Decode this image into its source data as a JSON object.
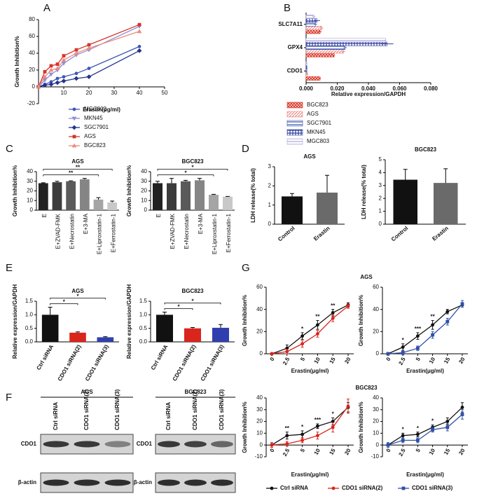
{
  "panel_labels": [
    "A",
    "B",
    "C",
    "D",
    "E",
    "F",
    "G"
  ],
  "chart_data": [
    {
      "type": "line",
      "xlabel": "Erastin(μg/ml)",
      "ylabel": "Growth Inhibition%",
      "x": [
        0,
        2.5,
        5,
        7.5,
        10,
        15,
        20,
        40
      ],
      "xlim": [
        0,
        50
      ],
      "xticks": [
        10,
        20,
        30,
        40,
        50
      ],
      "ylim": [
        -20,
        80
      ],
      "yticks": [
        -20,
        0,
        20,
        40,
        60,
        80
      ],
      "series": [
        {
          "name": "MGC803",
          "color": "#3f56b5",
          "marker": "circle",
          "values": [
            0,
            3,
            6,
            10,
            12,
            16,
            22,
            48
          ]
        },
        {
          "name": "MKN45",
          "color": "#8f8fd6",
          "marker": "triangle-down",
          "values": [
            0,
            8,
            15,
            20,
            28,
            38,
            44,
            72
          ]
        },
        {
          "name": "SGC7901",
          "color": "#24338f",
          "marker": "diamond",
          "values": [
            0,
            2,
            3,
            5,
            7,
            10,
            12,
            43
          ]
        },
        {
          "name": "AGS",
          "color": "#d6342a",
          "marker": "square",
          "values": [
            0,
            18,
            25,
            27,
            37,
            44,
            50,
            74
          ]
        },
        {
          "name": "BGC823",
          "color": "#ec8a7e",
          "marker": "triangle",
          "values": [
            0,
            12,
            20,
            22,
            32,
            40,
            46,
            66
          ]
        }
      ]
    },
    {
      "type": "hbar",
      "xlabel": "Relative expression/GAPDH",
      "categories": [
        "SLC7A11",
        "GPX4",
        "CDO1"
      ],
      "xlim": [
        0,
        0.08
      ],
      "xticks": [
        {
          "value": 0,
          "label": "0.000"
        },
        {
          "value": 0.02,
          "label": "0.020"
        },
        {
          "value": 0.04,
          "label": "0.040"
        },
        {
          "value": 0.06,
          "label": "0.060"
        },
        {
          "value": 0.08,
          "label": "0.080"
        }
      ],
      "series": [
        {
          "name": "BGC823",
          "color": "#d9382b",
          "hatch": "crosshatch",
          "values": [
            0.009,
            0.018,
            0.009
          ],
          "errors": [
            0.001,
            0.0005,
            0.0005
          ]
        },
        {
          "name": "AGS",
          "color": "#e9867f",
          "hatch": "diagonal",
          "values": [
            0.01,
            0.024,
            0.001
          ],
          "errors": [
            0.001,
            0.001,
            0.0002
          ]
        },
        {
          "name": "SGC7901",
          "color": "#3a53b0",
          "hatch": "horizontal",
          "values": [
            0.006,
            0.025,
            0.0005
          ],
          "errors": [
            0.001,
            0.001,
            0.0002
          ]
        },
        {
          "name": "MKN45",
          "color": "#2e3f9c",
          "hatch": "grid",
          "values": [
            0.007,
            0.052,
            0.0005
          ],
          "errors": [
            0.002,
            0.004,
            0.0002
          ]
        },
        {
          "name": "MGC803",
          "color": "#aaa4dc",
          "hatch": "horizontal",
          "values": [
            0.005,
            0.051,
            0.0005
          ],
          "errors": [
            0.001,
            0.0005,
            0.0002
          ]
        }
      ]
    },
    {
      "type": "bar",
      "title": "AGS",
      "ylabel": "Growth Inhibition%",
      "categories": [
        "E",
        "E+ZVAD-FMK",
        "E+Necrostatin",
        "E+3-MA",
        "E+Liproxstatin-1",
        "E+Ferrostatin-1"
      ],
      "values": [
        28,
        29,
        30,
        32,
        11,
        8
      ],
      "errors": [
        0.5,
        1,
        0.5,
        1,
        2,
        1.5
      ],
      "colors": [
        "#222222",
        "#3c3c3c",
        "#5a5a5a",
        "#858585",
        "#a5a5a5",
        "#c8c8c8"
      ],
      "ylim": [
        0,
        40
      ],
      "yticks": [
        0,
        10,
        20,
        30,
        40
      ],
      "brackets": [
        {
          "from": 0,
          "to": 4,
          "label": "**"
        },
        {
          "from": 0,
          "to": 5,
          "label": "**"
        }
      ]
    },
    {
      "type": "bar",
      "title": "BGC823",
      "ylabel": "Growth Inhibition%",
      "categories": [
        "E",
        "E+ZVAD-FMK",
        "E+Necrostatin",
        "E+3-MA",
        "E+Liproxstatin-1",
        "E+Ferrostatin-1"
      ],
      "values": [
        28,
        28,
        30,
        31,
        16,
        14
      ],
      "errors": [
        2,
        5,
        1,
        2,
        0.5,
        0.3
      ],
      "colors": [
        "#222222",
        "#3c3c3c",
        "#5a5a5a",
        "#858585",
        "#a5a5a5",
        "#c8c8c8"
      ],
      "ylim": [
        0,
        40
      ],
      "yticks": [
        0,
        10,
        20,
        30,
        40
      ],
      "brackets": [
        {
          "from": 0,
          "to": 4,
          "label": "*"
        },
        {
          "from": 0,
          "to": 5,
          "label": "*"
        }
      ]
    },
    {
      "type": "bar",
      "title": "AGS",
      "ylabel": "LDH release(% total)",
      "categories": [
        "Control",
        "Erastin"
      ],
      "values": [
        1.45,
        1.65
      ],
      "errors": [
        0.15,
        0.9
      ],
      "colors": [
        "#111111",
        "#6a6a6a"
      ],
      "ylim": [
        0,
        3
      ],
      "yticks": [
        0,
        1,
        2,
        3
      ]
    },
    {
      "type": "bar",
      "title": "BGC823",
      "ylabel": "LDH release(% total)",
      "categories": [
        "Control",
        "Erastin"
      ],
      "values": [
        3.45,
        3.2
      ],
      "errors": [
        0.8,
        1.1
      ],
      "colors": [
        "#111111",
        "#6a6a6a"
      ],
      "ylim": [
        0,
        5
      ],
      "yticks": [
        0,
        1,
        2,
        3,
        4,
        5
      ]
    },
    {
      "type": "bar",
      "title": "AGS",
      "ylabel": "Relative expression/GAPDH",
      "categories": [
        "Ctrl siRNA",
        "CDO1 siRNA(2)",
        "CDO1 siRNA(3)"
      ],
      "values": [
        1.0,
        0.34,
        0.17
      ],
      "errors": [
        0.28,
        0.03,
        0.02
      ],
      "colors": [
        "#111111",
        "#d9251c",
        "#2f3fae"
      ],
      "ylim": [
        0,
        1.5
      ],
      "yticks": [
        {
          "value": 0,
          "label": "0.0"
        },
        {
          "value": 0.5,
          "label": "0.5"
        },
        {
          "value": 1,
          "label": "1.0"
        },
        {
          "value": 1.5,
          "label": "1.5"
        }
      ],
      "brackets": [
        {
          "from": 0,
          "to": 1,
          "label": "*"
        },
        {
          "from": 0,
          "to": 2,
          "label": "*"
        }
      ]
    },
    {
      "type": "bar",
      "title": "BGC823",
      "ylabel": "Relative expression/GAPDH",
      "categories": [
        "Ctrl siRNA",
        "CDO1 siRNA(2)",
        "CDO1 siRNA(3)"
      ],
      "values": [
        1.0,
        0.5,
        0.52
      ],
      "errors": [
        0.1,
        0.03,
        0.12
      ],
      "colors": [
        "#111111",
        "#d9251c",
        "#2f3fae"
      ],
      "ylim": [
        0,
        1.5
      ],
      "yticks": [
        {
          "value": 0,
          "label": "0.0"
        },
        {
          "value": 0.5,
          "label": "0.5"
        },
        {
          "value": 1,
          "label": "1.0"
        },
        {
          "value": 1.5,
          "label": "1.5"
        }
      ],
      "brackets": [
        {
          "from": 0,
          "to": 1,
          "label": "*"
        },
        {
          "from": 0,
          "to": 2,
          "label": "*"
        }
      ]
    },
    {
      "type": "line",
      "title": "AGS",
      "xlabel": "Erastin(μg/ml)",
      "ylabel": "Growth Inhibition%",
      "categories": [
        "0",
        "2.5",
        "5",
        "10",
        "15",
        "20"
      ],
      "ylim": [
        0,
        60
      ],
      "yticks": [
        0,
        20,
        40,
        60
      ],
      "series": [
        {
          "name": "Ctrl siRNA",
          "color": "#111111",
          "marker": "circle",
          "values": [
            0,
            5,
            16,
            26,
            37,
            44
          ],
          "errors": [
            1,
            3,
            3,
            4,
            3,
            2
          ]
        },
        {
          "name": "CDO1 siRNA(2)",
          "color": "#d9251c",
          "marker": "circle",
          "values": [
            0,
            2,
            9,
            18,
            32,
            43
          ],
          "errors": [
            1,
            2,
            3,
            3,
            3,
            2
          ]
        }
      ],
      "stars": [
        {
          "at": 2,
          "label": "*"
        },
        {
          "at": 3,
          "label": "**"
        },
        {
          "at": 4,
          "label": "**"
        }
      ]
    },
    {
      "type": "line",
      "xlabel": "Erastin(μg/ml)",
      "ylabel": "Growth Inhibition%",
      "categories": [
        "0",
        "2.5",
        "5",
        "10",
        "15",
        "20"
      ],
      "ylim": [
        0,
        60
      ],
      "yticks": [
        0,
        20,
        40,
        60
      ],
      "series": [
        {
          "color": "#111111",
          "marker": "circle",
          "values": [
            0,
            6,
            16,
            26,
            38,
            44
          ],
          "errors": [
            1,
            3,
            3,
            4,
            2,
            2
          ]
        },
        {
          "name": "CDO1 siRNA(3)",
          "color": "#2f4fa8",
          "marker": "square",
          "values": [
            0,
            1,
            5,
            17,
            29,
            45
          ],
          "errors": [
            1,
            2,
            2,
            3,
            3,
            3
          ]
        }
      ],
      "stars": [
        {
          "at": 1,
          "label": "*"
        },
        {
          "at": 2,
          "label": "***"
        },
        {
          "at": 3,
          "label": "**"
        }
      ]
    },
    {
      "type": "line",
      "title": "BGC823",
      "xlabel": "Erastin(μg/ml)",
      "ylabel": "Growth Inhibition%",
      "categories": [
        "0",
        "2.5",
        "5",
        "10",
        "15",
        "20"
      ],
      "ylim": [
        -10,
        40
      ],
      "yticks": [
        -10,
        0,
        10,
        20,
        30,
        40
      ],
      "series": [
        {
          "color": "#111111",
          "marker": "circle",
          "values": [
            0,
            8,
            9,
            16,
            20,
            32
          ],
          "errors": [
            2,
            3,
            3,
            2,
            3,
            4
          ]
        },
        {
          "color": "#d9251c",
          "marker": "circle",
          "values": [
            0,
            1,
            4,
            8,
            15,
            33
          ],
          "errors": [
            2,
            2,
            2,
            3,
            4,
            6
          ]
        }
      ],
      "stars": [
        {
          "at": 1,
          "label": "**"
        },
        {
          "at": 2,
          "label": "*"
        },
        {
          "at": 3,
          "label": "***"
        },
        {
          "at": 4,
          "label": "*"
        }
      ]
    },
    {
      "type": "line",
      "xlabel": "Erastin(μg/ml)",
      "ylabel": "Growth Inhibition%",
      "categories": [
        "0",
        "2.5",
        "5",
        "10",
        "15",
        "20"
      ],
      "ylim": [
        -10,
        40
      ],
      "yticks": [
        -10,
        0,
        10,
        20,
        30,
        40
      ],
      "series": [
        {
          "color": "#111111",
          "marker": "circle",
          "values": [
            0,
            8,
            9,
            15,
            20,
            32
          ],
          "errors": [
            2,
            2,
            2,
            2,
            3,
            4
          ]
        },
        {
          "color": "#2f4fa8",
          "marker": "square",
          "values": [
            0,
            4,
            4,
            13,
            15,
            26
          ],
          "errors": [
            2,
            2,
            2,
            2,
            3,
            4
          ]
        }
      ],
      "stars": [
        {
          "at": 1,
          "label": "*"
        },
        {
          "at": 2,
          "label": "*"
        },
        {
          "at": 3,
          "label": "*"
        }
      ]
    }
  ],
  "blots": [
    {
      "title": "AGS",
      "columns": [
        "Ctrl siRNA",
        "CDO1 siRNA(2)",
        "CDO1 siRNA(3)"
      ],
      "rows": [
        "CDO1",
        "β-actin"
      ]
    },
    {
      "title": "BGC823",
      "columns": [
        "Ctrl siRNA",
        "CDO1 siRNA(2)",
        "CDO1 siRNA(3)"
      ],
      "rows": [
        "CDO1",
        "β-actin"
      ]
    }
  ]
}
